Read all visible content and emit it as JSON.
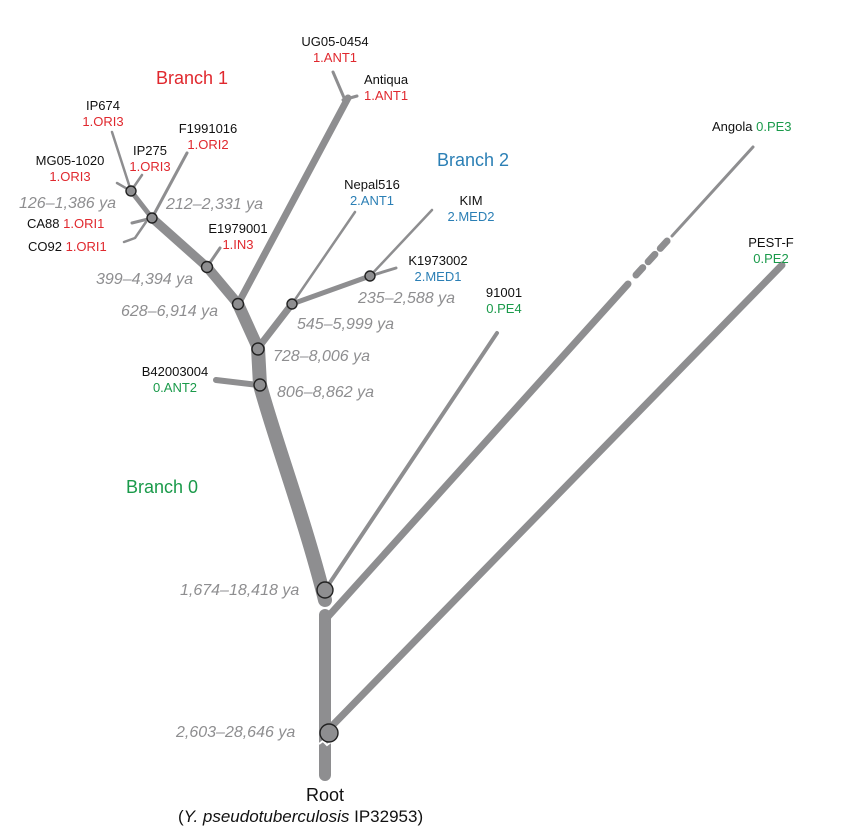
{
  "branches": {
    "branch1": {
      "label": "Branch 1",
      "color": "#e0282e"
    },
    "branch2": {
      "label": "Branch 2",
      "color": "#2b7fb5"
    },
    "branch0": {
      "label": "Branch 0",
      "color": "#1a9a4a"
    }
  },
  "leaves": [
    {
      "id": "ug05",
      "strain": "UG05-0454",
      "lineage": "1.ANT1",
      "color": "red"
    },
    {
      "id": "antiqua",
      "strain": "Antiqua",
      "lineage": "1.ANT1",
      "color": "red"
    },
    {
      "id": "ip674",
      "strain": "IP674",
      "lineage": "1.ORI3",
      "color": "red"
    },
    {
      "id": "f1991016",
      "strain": "F1991016",
      "lineage": "1.ORI2",
      "color": "red"
    },
    {
      "id": "ip275",
      "strain": "IP275",
      "lineage": "1.ORI3",
      "color": "red"
    },
    {
      "id": "mg05",
      "strain": "MG05-1020",
      "lineage": "1.ORI3",
      "color": "red"
    },
    {
      "id": "ca88",
      "strain": "CA88",
      "lineage": "1.ORI1",
      "color": "red"
    },
    {
      "id": "co92",
      "strain": "CO92",
      "lineage": "1.ORI1",
      "color": "red"
    },
    {
      "id": "e1979001",
      "strain": "E1979001",
      "lineage": "1.IN3",
      "color": "red"
    },
    {
      "id": "nepal516",
      "strain": "Nepal516",
      "lineage": "2.ANT1",
      "color": "blue"
    },
    {
      "id": "kim",
      "strain": "KIM",
      "lineage": "2.MED2",
      "color": "blue"
    },
    {
      "id": "k1973002",
      "strain": "K1973002",
      "lineage": "2.MED1",
      "color": "blue"
    },
    {
      "id": "b42003004",
      "strain": "B42003004",
      "lineage": "0.ANT2",
      "color": "green"
    },
    {
      "id": "s91001",
      "strain": "91001",
      "lineage": "0.PE4",
      "color": "green"
    },
    {
      "id": "angola",
      "strain": "Angola",
      "lineage": "0.PE3",
      "color": "green"
    },
    {
      "id": "pestf",
      "strain": "PEST-F",
      "lineage": "0.PE2",
      "color": "green"
    }
  ],
  "node_dates": {
    "n126": "126–1,386 ya",
    "n212": "212–2,331 ya",
    "n399": "399–4,394 ya",
    "n628": "628–6,914 ya",
    "n235": "235–2,588 ya",
    "n545": "545–5,999 ya",
    "n728": "728–8,006 ya",
    "n806": "806–8,862 ya",
    "n1674": "1,674–18,418 ya",
    "n2603": "2,603–28,646 ya"
  },
  "root": {
    "label": "Root",
    "subtitle_open": "(",
    "subtitle_species": "Y. pseudotuberculosis",
    "subtitle_strain": " IP32953)"
  },
  "colors": {
    "branch_gray": "#8e8e90",
    "node_outline": "#222222",
    "date_gray": "#8e8e90",
    "red": "#e0282e",
    "blue": "#2b7fb5",
    "green": "#1a9a4a"
  }
}
